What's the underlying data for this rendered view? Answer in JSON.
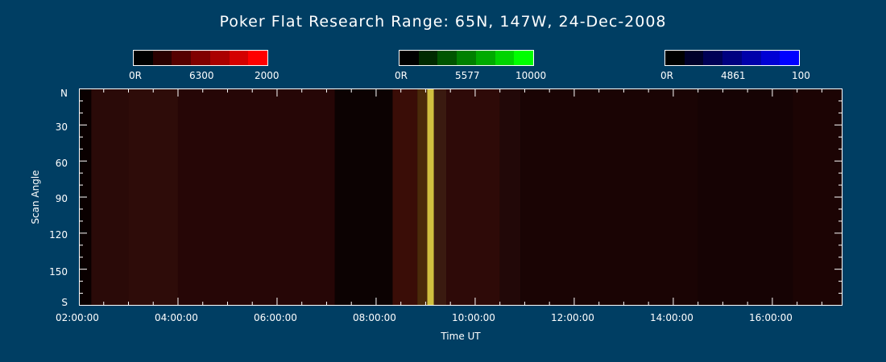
{
  "title": "Poker Flat Research Range: 65N, 147W, 24-Dec-2008",
  "colorbars": [
    {
      "min_label": "0R",
      "mid_label": "6300",
      "max_label": "2000",
      "colors": [
        "#000000",
        "#2a0000",
        "#550000",
        "#800000",
        "#aa0000",
        "#d40000",
        "#ff0000"
      ]
    },
    {
      "min_label": "0R",
      "mid_label": "5577",
      "max_label": "10000",
      "colors": [
        "#000000",
        "#002a00",
        "#005500",
        "#008000",
        "#00aa00",
        "#00d400",
        "#00ff00"
      ]
    },
    {
      "min_label": "0R",
      "mid_label": "4861",
      "max_label": "100",
      "colors": [
        "#000000",
        "#00002a",
        "#000055",
        "#000080",
        "#0000aa",
        "#0000d4",
        "#0000ff"
      ]
    }
  ],
  "chart_data": {
    "type": "heatmap",
    "title": "Poker Flat Research Range: 65N, 147W, 24-Dec-2008",
    "xlabel": "Time UT",
    "ylabel": "Scan Angle",
    "xlim": [
      "02:00:00",
      "17:25:00"
    ],
    "ylim": [
      180,
      0
    ],
    "x_ticks": [
      "02:00:00",
      "04:00:00",
      "06:00:00",
      "08:00:00",
      "10:00:00",
      "12:00:00",
      "14:00:00",
      "16:00:00"
    ],
    "y_ticks": [
      "N",
      "30",
      "60",
      "90",
      "120",
      "150",
      "S"
    ],
    "channels": [
      "6300",
      "5577",
      "4861"
    ],
    "time_bands": [
      {
        "start": "02:15:00",
        "end": "03:00:00",
        "color": "#2a0a08"
      },
      {
        "start": "03:00:00",
        "end": "04:00:00",
        "color": "#2e0c09"
      },
      {
        "start": "04:00:00",
        "end": "07:10:00",
        "color": "#260606"
      },
      {
        "start": "07:10:00",
        "end": "08:20:00",
        "color": "#0c0202"
      },
      {
        "start": "08:20:00",
        "end": "08:50:00",
        "color": "#3a0d07"
      },
      {
        "start": "08:50:00",
        "end": "09:02:00",
        "color": "#4a2a0a"
      },
      {
        "start": "09:02:00",
        "end": "09:10:00",
        "color": "#d0c040"
      },
      {
        "start": "09:10:00",
        "end": "09:25:00",
        "color": "#3a1a10"
      },
      {
        "start": "09:25:00",
        "end": "10:30:00",
        "color": "#2e0a08"
      },
      {
        "start": "10:30:00",
        "end": "10:55:00",
        "color": "#220808"
      },
      {
        "start": "10:55:00",
        "end": "14:30:00",
        "color": "#1a0404"
      },
      {
        "start": "14:30:00",
        "end": "16:25:00",
        "color": "#160304"
      },
      {
        "start": "16:25:00",
        "end": "17:25:00",
        "color": "#1c0404"
      }
    ]
  }
}
